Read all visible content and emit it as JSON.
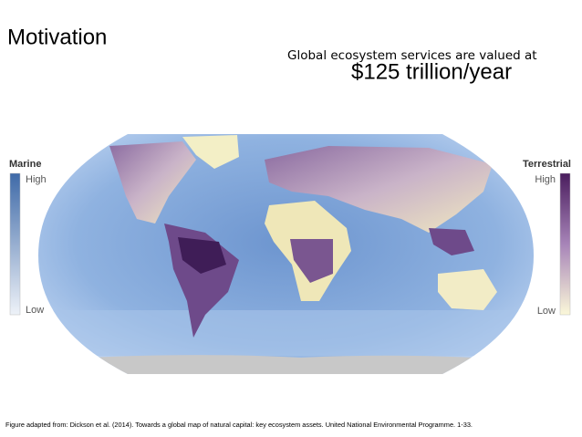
{
  "slide": {
    "title": "Motivation",
    "headline": "Global ecosystem services are valued at",
    "value_text": "$125 trillion/year",
    "legend_left": {
      "title": "Marine",
      "high": "High",
      "low": "Low"
    },
    "legend_right": {
      "title": "Terrestrial",
      "high": "High",
      "low": "Low"
    },
    "caption": "Figure adapted from: Dickson et al. (2014). Towards a global map of natural capital: key ecosystem assets. United National Environmental Programme. 1-33."
  }
}
